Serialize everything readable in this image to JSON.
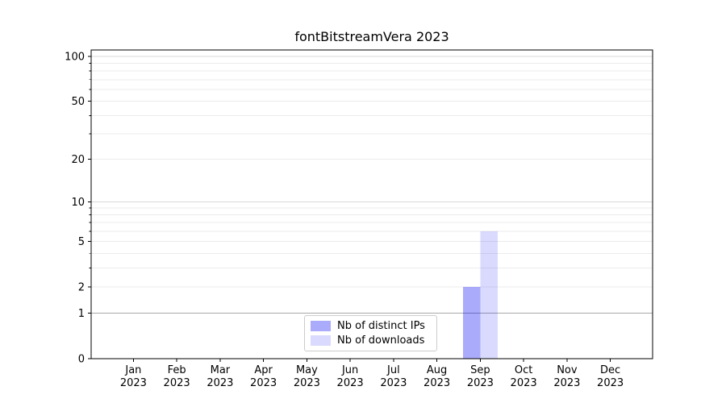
{
  "title": "fontBitstreamVera 2023",
  "colors": {
    "background": "#ffffff",
    "bar_distinct_ips": "rgba(10,10,245,0.34)",
    "bar_downloads": "rgba(10,10,245,0.15)",
    "grid_level_one": "#a8a8a8",
    "grid_power_ten": "#d8d8d8",
    "grid_minor": "#ebebeb",
    "spine": "#000000",
    "tick_text": "#000000",
    "legend_border": "#cccccc"
  },
  "legend": {
    "items": [
      {
        "label": "Nb of distinct IPs",
        "color_key": "bar_distinct_ips"
      },
      {
        "label": "Nb of downloads",
        "color_key": "bar_downloads"
      }
    ]
  },
  "chart_data": {
    "type": "bar",
    "title": "fontBitstreamVera 2023",
    "categories": [
      "Jan 2023",
      "Feb 2023",
      "Mar 2023",
      "Apr 2023",
      "May 2023",
      "Jun 2023",
      "Jul 2023",
      "Aug 2023",
      "Sep 2023",
      "Oct 2023",
      "Nov 2023",
      "Dec 2023"
    ],
    "x_tick_labels": [
      [
        "Jan",
        "2023"
      ],
      [
        "Feb",
        "2023"
      ],
      [
        "Mar",
        "2023"
      ],
      [
        "Apr",
        "2023"
      ],
      [
        "May",
        "2023"
      ],
      [
        "Jun",
        "2023"
      ],
      [
        "Jul",
        "2023"
      ],
      [
        "Aug",
        "2023"
      ],
      [
        "Sep",
        "2023"
      ],
      [
        "Oct",
        "2023"
      ],
      [
        "Nov",
        "2023"
      ],
      [
        "Dec",
        "2023"
      ]
    ],
    "series": [
      {
        "name": "Nb of distinct IPs",
        "color_key": "bar_distinct_ips",
        "values": [
          0,
          0,
          0,
          0,
          0,
          0,
          0,
          0,
          2,
          0,
          0,
          0
        ]
      },
      {
        "name": "Nb of downloads",
        "color_key": "bar_downloads",
        "values": [
          0,
          0,
          0,
          0,
          0,
          0,
          0,
          0,
          6,
          0,
          0,
          0
        ]
      }
    ],
    "yscale": "log1p",
    "ylim": [
      0,
      110.7
    ],
    "y_major_ticks": [
      0,
      1,
      2,
      5,
      10,
      20,
      50,
      100
    ],
    "y_minor_ticks": [
      3,
      4,
      6,
      7,
      8,
      9,
      30,
      40,
      60,
      70,
      80,
      90
    ],
    "grid": "horizontal",
    "legend_position": "lower center"
  }
}
